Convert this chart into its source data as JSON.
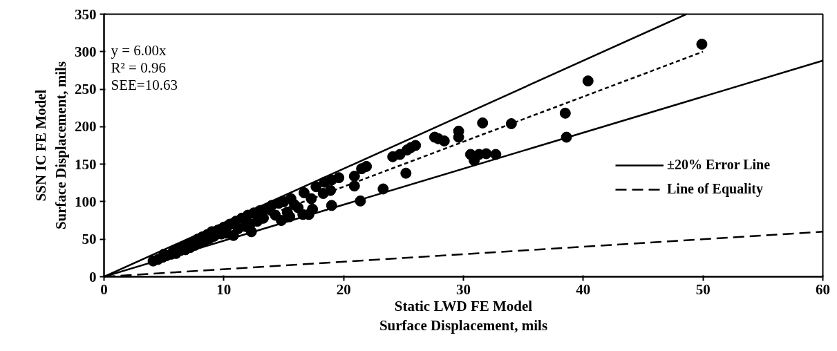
{
  "chart_data": {
    "type": "scatter",
    "xlabel": "Static LWD FE Model\nSurface Displacement, mils",
    "ylabel": "SSN IC FE Model\nSurface Displacement, mils",
    "xlim": [
      0,
      60
    ],
    "ylim": [
      0,
      350
    ],
    "xticks": [
      0,
      10,
      20,
      30,
      40,
      50,
      60
    ],
    "yticks": [
      0,
      50,
      100,
      150,
      200,
      250,
      300,
      350
    ],
    "grid": false,
    "legend": "right",
    "marker": "circle",
    "annotations": [
      "y = 6.00x",
      "R² = 0.96",
      "SEE=10.63"
    ],
    "series": [
      {
        "color": "#000000",
        "x": [
          4.1,
          4.5,
          4.9,
          5.0,
          5.2,
          5.6,
          5.8,
          6.0,
          6.2,
          6.4,
          6.6,
          6.8,
          7.0,
          7.2,
          7.4,
          7.6,
          7.8,
          8.0,
          8.2,
          8.4,
          8.6,
          8.8,
          9.0,
          9.2,
          9.5,
          9.8,
          10.0,
          10.2,
          10.5,
          11.0,
          11.2,
          11.5,
          11.8,
          12.0,
          12.2,
          12.5,
          12.8,
          13.0,
          13.3,
          13.6,
          14.0,
          14.3,
          14.6,
          15.0,
          15.3,
          15.6,
          15.9,
          16.2,
          14.8,
          12.3,
          10.8,
          15.5,
          16.6,
          17.1,
          17.4,
          17.3,
          16.7,
          17.7,
          18.3,
          18.9,
          18.4,
          19.0,
          19.6,
          19.0,
          21.4,
          20.9,
          20.9,
          21.5,
          21.9,
          23.3,
          25.2,
          24.1,
          24.7,
          25.3,
          25.6,
          26.0,
          27.6,
          27.9,
          28.4,
          29.6,
          29.6,
          30.6,
          30.9,
          31.3,
          31.9,
          32.7,
          31.6,
          34.0,
          38.5,
          38.6,
          40.4,
          49.9
        ],
        "values": [
          21,
          23,
          26,
          30,
          28,
          30,
          34,
          31,
          37,
          35,
          40,
          36,
          43,
          39,
          46,
          42,
          50,
          45,
          53,
          48,
          56,
          51,
          60,
          54,
          62,
          57,
          66,
          58,
          70,
          74,
          64,
          78,
          67,
          82,
          70,
          85,
          74,
          88,
          78,
          90,
          95,
          82,
          98,
          100,
          86,
          104,
          96,
          92,
          75,
          60,
          55,
          80,
          83,
          83,
          90,
          104,
          112,
          120,
          111,
          115,
          126,
          129,
          132,
          95,
          101,
          121,
          134,
          144,
          147,
          117,
          138,
          160,
          163,
          169,
          172,
          175,
          186,
          184,
          181,
          194,
          186,
          163,
          155,
          163,
          164,
          163,
          205,
          204,
          218,
          186,
          261,
          310
        ]
      },
      {
        "type": "line",
        "name": "±20% Error Line",
        "color": "#000000",
        "line_style": "solid",
        "marker": "none",
        "x": [
          0,
          48.61
        ],
        "values": [
          0,
          350
        ]
      },
      {
        "type": "line",
        "color": "#000000",
        "line_style": "solid",
        "marker": "none",
        "x": [
          0,
          60
        ],
        "values": [
          0,
          288
        ]
      },
      {
        "type": "line",
        "name": "Line of Equality",
        "color": "#000000",
        "line_style": "dashed",
        "marker": "none",
        "x": [
          0,
          60
        ],
        "values": [
          0,
          60
        ]
      },
      {
        "type": "line",
        "color": "#000000",
        "line_style": "dotted",
        "marker": "none",
        "x": [
          4,
          50
        ],
        "values": [
          24,
          300
        ]
      }
    ]
  }
}
